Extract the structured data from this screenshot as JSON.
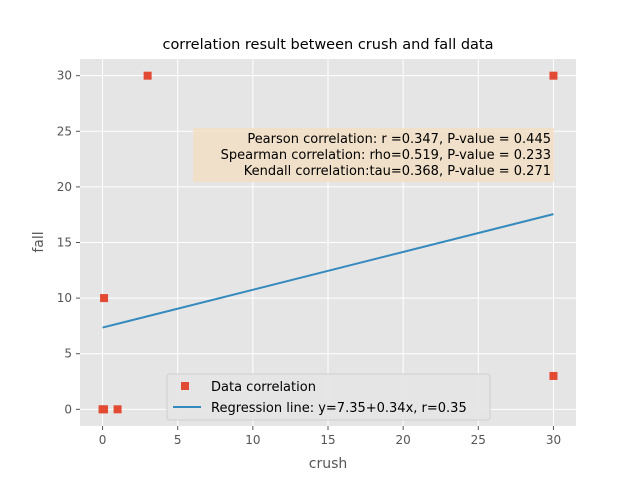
{
  "chart_data": {
    "type": "scatter",
    "title": "correlation result between crush and fall data",
    "xlabel": "crush",
    "ylabel": "fall",
    "xlim": [
      -1.5,
      31.5
    ],
    "ylim": [
      -1.5,
      31.5
    ],
    "xticks": [
      0,
      5,
      10,
      15,
      20,
      25,
      30
    ],
    "yticks": [
      0,
      5,
      10,
      15,
      20,
      25,
      30
    ],
    "grid": true,
    "legend_position": "bottom-center",
    "series": [
      {
        "name": "Data correlation",
        "kind": "scatter",
        "marker": "square",
        "color": "#E24A33",
        "points": [
          {
            "x": 0,
            "y": 0
          },
          {
            "x": 0.1,
            "y": 0
          },
          {
            "x": 0.1,
            "y": 10
          },
          {
            "x": 1,
            "y": 0
          },
          {
            "x": 3,
            "y": 30
          },
          {
            "x": 30,
            "y": 30
          },
          {
            "x": 30,
            "y": 3
          }
        ]
      },
      {
        "name": "Regression line: y=7.35+0.34x, r=0.35",
        "kind": "line",
        "color": "#348ABD",
        "intercept": 7.35,
        "slope": 0.34,
        "x_range": [
          0,
          30
        ]
      }
    ],
    "annotation": {
      "lines": [
        "Pearson correlation: r =0.347, P-value = 0.445",
        "Spearman correlation: rho=0.519, P-value = 0.233",
        "Kendall correlation:tau=0.368, P-value = 0.271"
      ],
      "background": "#F2DFC4"
    },
    "colors": {
      "plot_background": "#E5E5E5",
      "grid": "#FFFFFF",
      "tick": "#555555"
    }
  }
}
